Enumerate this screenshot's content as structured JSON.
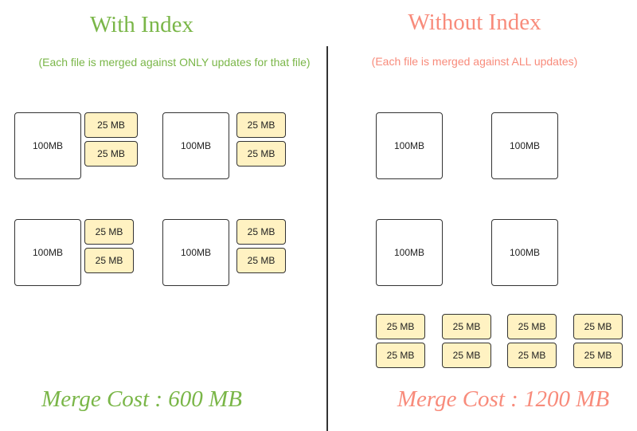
{
  "left": {
    "title": "With Index",
    "subtitle": "(Each file is merged against ONLY updates for that file)",
    "file_label": "100MB",
    "update_label": "25 MB",
    "cost": "Merge Cost : 600 MB",
    "color": "#7ab648"
  },
  "right": {
    "title": "Without Index",
    "subtitle": "(Each file is merged against ALL updates)",
    "file_label": "100MB",
    "update_label": "25 MB",
    "cost": "Merge Cost : 1200 MB",
    "color": "#f88b7b"
  }
}
